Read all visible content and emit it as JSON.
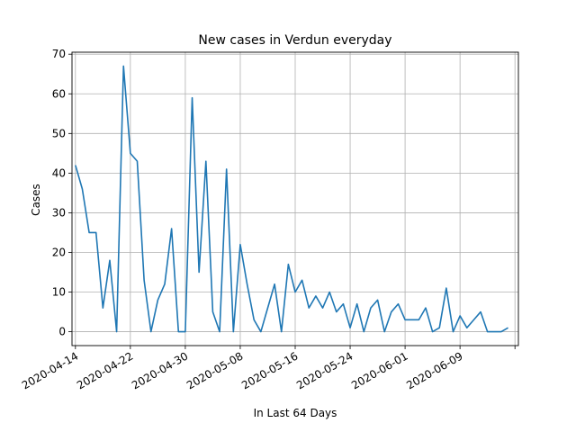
{
  "chart_data": {
    "type": "line",
    "title": "New cases in Verdun everyday",
    "xlabel": "In Last 64 Days",
    "ylabel": "Cases",
    "grid": true,
    "legend": "none",
    "line_color": "#1f77b4",
    "xlim": [
      "2020-04-14",
      "2020-06-17"
    ],
    "ylim": [
      0,
      70
    ],
    "x_ticks": [
      "2020-04-14",
      "2020-04-22",
      "2020-04-30",
      "2020-05-08",
      "2020-05-16",
      "2020-05-24",
      "2020-06-01",
      "2020-06-09"
    ],
    "y_ticks": [
      0,
      10,
      20,
      30,
      40,
      50,
      60,
      70
    ],
    "x": [
      "2020-04-14",
      "2020-04-15",
      "2020-04-16",
      "2020-04-17",
      "2020-04-18",
      "2020-04-19",
      "2020-04-20",
      "2020-04-21",
      "2020-04-22",
      "2020-04-23",
      "2020-04-24",
      "2020-04-25",
      "2020-04-26",
      "2020-04-27",
      "2020-04-28",
      "2020-04-29",
      "2020-04-30",
      "2020-05-01",
      "2020-05-02",
      "2020-05-03",
      "2020-05-04",
      "2020-05-05",
      "2020-05-06",
      "2020-05-07",
      "2020-05-08",
      "2020-05-09",
      "2020-05-10",
      "2020-05-11",
      "2020-05-12",
      "2020-05-13",
      "2020-05-14",
      "2020-05-15",
      "2020-05-16",
      "2020-05-17",
      "2020-05-18",
      "2020-05-19",
      "2020-05-20",
      "2020-05-21",
      "2020-05-22",
      "2020-05-23",
      "2020-05-24",
      "2020-05-25",
      "2020-05-26",
      "2020-05-27",
      "2020-05-28",
      "2020-05-29",
      "2020-05-30",
      "2020-05-31",
      "2020-06-01",
      "2020-06-02",
      "2020-06-03",
      "2020-06-04",
      "2020-06-05",
      "2020-06-06",
      "2020-06-07",
      "2020-06-08",
      "2020-06-09",
      "2020-06-10",
      "2020-06-11",
      "2020-06-12",
      "2020-06-13",
      "2020-06-14",
      "2020-06-15",
      "2020-06-16"
    ],
    "y": [
      42,
      36,
      25,
      25,
      6,
      18,
      0,
      67,
      45,
      43,
      13,
      0,
      8,
      12,
      26,
      0,
      0,
      59,
      15,
      43,
      5,
      0,
      41,
      0,
      22,
      12,
      3,
      0,
      6,
      12,
      0,
      17,
      10,
      13,
      6,
      9,
      6,
      10,
      5,
      7,
      1,
      7,
      0,
      6,
      8,
      0,
      5,
      7,
      3,
      3,
      3,
      6,
      0,
      1,
      11,
      0,
      4,
      1,
      3,
      5,
      0,
      0,
      0,
      1
    ]
  }
}
